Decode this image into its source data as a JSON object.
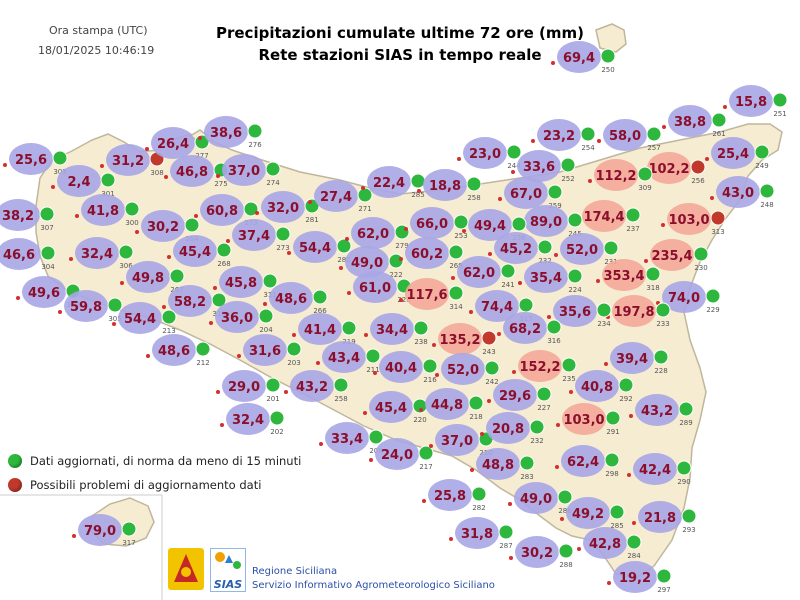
{
  "header": {
    "stamp_label": "Ora stampa (UTC)",
    "stamp_time": "18/01/2025 10:46:19",
    "title_line1": "Precipitazioni cumulate ultime 72 ore (mm)",
    "title_line2": "Rete stazioni SIAS in tempo reale"
  },
  "legend": {
    "ok_label": "Dati aggiornati, di norma da meno di 15 minuti",
    "warn_label": "Possibili problemi di aggiornamento dati"
  },
  "footer": {
    "org_line1": "Regione Siciliana",
    "org_line2": "Servizio Informativo Agrometeorologico Siciliano",
    "logo_text": "SIAS"
  },
  "colors": {
    "land": "#f5ecd2",
    "coast": "#bfb69c",
    "low_bubble": "#a9a6e6",
    "high_bubble": "#f4a898",
    "value_text": "#8b0f2c",
    "status_ok": "#2db83d",
    "status_warn": "#c0392b"
  },
  "stations": [
    {
      "value": "69,4",
      "id": "250",
      "status": "ok"
    },
    {
      "value": "15,8",
      "id": "251",
      "status": "ok"
    },
    {
      "value": "38,8",
      "id": "261",
      "status": "ok"
    },
    {
      "value": "25,4",
      "id": "249",
      "status": "ok"
    },
    {
      "value": "102,2",
      "id": "256",
      "status": "warn"
    },
    {
      "value": "43,0",
      "id": "248",
      "status": "ok"
    },
    {
      "value": "103,0",
      "id": "313",
      "status": "warn"
    },
    {
      "value": "58,0",
      "id": "257",
      "status": "ok"
    },
    {
      "value": "23,2",
      "id": "254",
      "status": "ok"
    },
    {
      "value": "112,2",
      "id": "309",
      "status": "ok"
    },
    {
      "value": "23,0",
      "id": "244",
      "status": "ok"
    },
    {
      "value": "33,6",
      "id": "252",
      "status": "ok"
    },
    {
      "value": "67,0",
      "id": "259",
      "status": "ok"
    },
    {
      "value": "174,4",
      "id": "237",
      "status": "ok"
    },
    {
      "value": "235,4",
      "id": "230",
      "status": "ok"
    },
    {
      "value": "89,0",
      "id": "245",
      "status": "ok"
    },
    {
      "value": "52,0",
      "id": "231",
      "status": "ok"
    },
    {
      "value": "353,4",
      "id": "318",
      "status": "ok"
    },
    {
      "value": "74,0",
      "id": "229",
      "status": "ok"
    },
    {
      "value": "197,8",
      "id": "233",
      "status": "ok"
    },
    {
      "value": "49,4",
      "id": "236",
      "status": "ok"
    },
    {
      "value": "45,2",
      "id": "232",
      "status": "ok"
    },
    {
      "value": "35,4",
      "id": "224",
      "status": "ok"
    },
    {
      "value": "35,6",
      "id": "234",
      "status": "ok"
    },
    {
      "value": "25,6",
      "id": "303",
      "status": "ok"
    },
    {
      "value": "31,2",
      "id": "308",
      "status": "warn"
    },
    {
      "value": "2,4",
      "id": "301",
      "status": "ok"
    },
    {
      "value": "26,4",
      "id": "277",
      "status": "ok"
    },
    {
      "value": "38,6",
      "id": "276",
      "status": "ok"
    },
    {
      "value": "46,8",
      "id": "275",
      "status": "ok"
    },
    {
      "value": "37,0",
      "id": "274",
      "status": "ok"
    },
    {
      "value": "38,2",
      "id": "307",
      "status": "ok"
    },
    {
      "value": "41,8",
      "id": "300",
      "status": "ok"
    },
    {
      "value": "30,2",
      "id": "264",
      "status": "ok"
    },
    {
      "value": "60,8",
      "id": "273",
      "status": "ok"
    },
    {
      "value": "32,0",
      "id": "281",
      "status": "ok"
    },
    {
      "value": "27,4",
      "id": "271",
      "status": "ok"
    },
    {
      "value": "22,4",
      "id": "285",
      "status": "ok"
    },
    {
      "value": "18,8",
      "id": "258",
      "status": "ok"
    },
    {
      "value": "46,6",
      "id": "304",
      "status": "ok"
    },
    {
      "value": "32,4",
      "id": "306",
      "status": "ok"
    },
    {
      "value": "45,4",
      "id": "268",
      "status": "ok"
    },
    {
      "value": "37,4",
      "id": "273",
      "status": "ok"
    },
    {
      "value": "54,4",
      "id": "282",
      "status": "ok"
    },
    {
      "value": "62,0",
      "id": "279",
      "status": "ok"
    },
    {
      "value": "66,0",
      "id": "253",
      "status": "ok"
    },
    {
      "value": "49,0",
      "id": "222",
      "status": "ok"
    },
    {
      "value": "60,2",
      "id": "269",
      "status": "ok"
    },
    {
      "value": "49,6",
      "id": "302",
      "status": "ok"
    },
    {
      "value": "49,8",
      "id": "267",
      "status": "ok"
    },
    {
      "value": "45,8",
      "id": "311",
      "status": "ok"
    },
    {
      "value": "59,8",
      "id": "305",
      "status": "ok"
    },
    {
      "value": "58,2",
      "id": "310",
      "status": "ok"
    },
    {
      "value": "54,4",
      "id": "213",
      "status": "ok"
    },
    {
      "value": "36,0",
      "id": "204",
      "status": "ok"
    },
    {
      "value": "48,6",
      "id": "266",
      "status": "ok"
    },
    {
      "value": "61,0",
      "id": "220",
      "status": "ok"
    },
    {
      "value": "117,6",
      "id": "314",
      "status": "ok"
    },
    {
      "value": "62,0",
      "id": "241",
      "status": "ok"
    },
    {
      "value": "74,4",
      "id": "315",
      "status": "ok"
    },
    {
      "value": "41,4",
      "id": "219",
      "status": "ok"
    },
    {
      "value": "34,4",
      "id": "238",
      "status": "ok"
    },
    {
      "value": "135,2",
      "id": "243",
      "status": "warn"
    },
    {
      "value": "68,2",
      "id": "316",
      "status": "ok"
    },
    {
      "value": "48,6",
      "id": "212",
      "status": "ok"
    },
    {
      "value": "31,6",
      "id": "203",
      "status": "ok"
    },
    {
      "value": "43,4",
      "id": "211",
      "status": "ok"
    },
    {
      "value": "40,4",
      "id": "216",
      "status": "ok"
    },
    {
      "value": "52,0",
      "id": "242",
      "status": "ok"
    },
    {
      "value": "152,2",
      "id": "235",
      "status": "ok"
    },
    {
      "value": "39,4",
      "id": "228",
      "status": "ok"
    },
    {
      "value": "29,0",
      "id": "201",
      "status": "ok"
    },
    {
      "value": "43,2",
      "id": "258",
      "status": "ok"
    },
    {
      "value": "40,8",
      "id": "292",
      "status": "ok"
    },
    {
      "value": "32,4",
      "id": "202",
      "status": "ok"
    },
    {
      "value": "45,4",
      "id": "220",
      "status": "ok"
    },
    {
      "value": "44,8",
      "id": "218",
      "status": "ok"
    },
    {
      "value": "29,6",
      "id": "227",
      "status": "ok"
    },
    {
      "value": "103,0",
      "id": "291",
      "status": "ok"
    },
    {
      "value": "43,2",
      "id": "289",
      "status": "ok"
    },
    {
      "value": "33,4",
      "id": "208",
      "status": "ok"
    },
    {
      "value": "24,0",
      "id": "217",
      "status": "ok"
    },
    {
      "value": "37,0",
      "id": "210",
      "status": "ok"
    },
    {
      "value": "20,8",
      "id": "232",
      "status": "ok"
    },
    {
      "value": "48,8",
      "id": "283",
      "status": "ok"
    },
    {
      "value": "62,4",
      "id": "298",
      "status": "ok"
    },
    {
      "value": "42,4",
      "id": "290",
      "status": "ok"
    },
    {
      "value": "25,8",
      "id": "282",
      "status": "ok"
    },
    {
      "value": "49,0",
      "id": "286",
      "status": "ok"
    },
    {
      "value": "49,2",
      "id": "285",
      "status": "ok"
    },
    {
      "value": "21,8",
      "id": "293",
      "status": "ok"
    },
    {
      "value": "79,0",
      "id": "317",
      "status": "ok"
    },
    {
      "value": "31,8",
      "id": "287",
      "status": "ok"
    },
    {
      "value": "30,2",
      "id": "288",
      "status": "ok"
    },
    {
      "value": "42,8",
      "id": "284",
      "status": "ok"
    },
    {
      "value": "19,2",
      "id": "297",
      "status": "ok"
    }
  ]
}
